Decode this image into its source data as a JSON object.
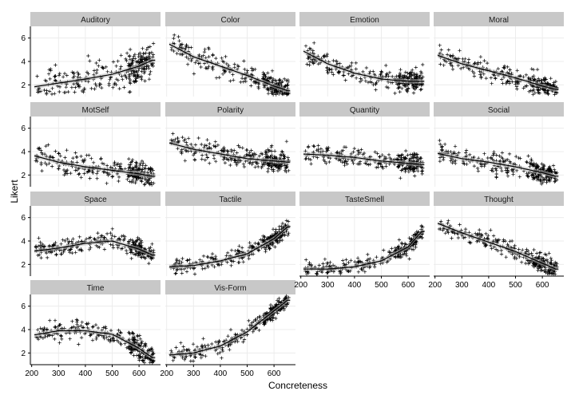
{
  "chart_data": {
    "type": "scatter",
    "title": "",
    "xlabel": "Concreteness",
    "ylabel": "Likert",
    "xlim": [
      195,
      680
    ],
    "ylim": [
      1,
      7
    ],
    "x_ticks": [
      200,
      300,
      400,
      500,
      600
    ],
    "y_ticks": [
      2,
      4,
      6
    ],
    "grid": true,
    "facet_layout": {
      "columns": 4,
      "rows": 4
    },
    "colors": {
      "points": "#000000",
      "smooth": "#000000",
      "ribbon": "#bdbdbd",
      "strip": "#c8c8c8",
      "grid": "#ececec"
    },
    "facets": [
      {
        "name": "Auditory",
        "smooth_x": [
          200,
          300,
          400,
          500,
          600,
          650
        ],
        "smooth_y": [
          1.8,
          2.15,
          2.5,
          2.9,
          3.6,
          4.1
        ],
        "spread": 1.3
      },
      {
        "name": "Color",
        "smooth_x": [
          200,
          300,
          400,
          500,
          600,
          650
        ],
        "smooth_y": [
          5.6,
          4.4,
          3.6,
          2.8,
          1.9,
          1.5
        ],
        "spread": 0.8
      },
      {
        "name": "Emotion",
        "smooth_x": [
          200,
          300,
          400,
          500,
          600,
          650
        ],
        "smooth_y": [
          5.0,
          3.8,
          3.0,
          2.5,
          2.3,
          2.3
        ],
        "spread": 0.8
      },
      {
        "name": "Moral",
        "smooth_x": [
          200,
          300,
          400,
          500,
          600,
          650
        ],
        "smooth_y": [
          4.6,
          3.8,
          3.2,
          2.6,
          1.9,
          1.6
        ],
        "spread": 0.8
      },
      {
        "name": "MotSelf",
        "smooth_x": [
          200,
          300,
          400,
          500,
          600,
          650
        ],
        "smooth_y": [
          3.7,
          3.1,
          2.7,
          2.4,
          2.1,
          1.9
        ],
        "spread": 0.9
      },
      {
        "name": "Polarity",
        "smooth_x": [
          200,
          300,
          400,
          500,
          600,
          650
        ],
        "smooth_y": [
          4.8,
          4.2,
          3.8,
          3.4,
          3.2,
          3.1
        ],
        "spread": 0.8
      },
      {
        "name": "Quantity",
        "smooth_x": [
          200,
          300,
          400,
          500,
          600,
          650
        ],
        "smooth_y": [
          3.8,
          3.7,
          3.5,
          3.2,
          3.0,
          2.9
        ],
        "spread": 0.8
      },
      {
        "name": "Social",
        "smooth_x": [
          200,
          300,
          400,
          500,
          600,
          650
        ],
        "smooth_y": [
          3.9,
          3.4,
          3.1,
          2.7,
          2.2,
          1.9
        ],
        "spread": 0.8
      },
      {
        "name": "Space",
        "smooth_x": [
          200,
          300,
          400,
          500,
          600,
          650
        ],
        "smooth_y": [
          3.1,
          3.4,
          3.8,
          4.0,
          3.3,
          2.8
        ],
        "spread": 0.7
      },
      {
        "name": "Tactile",
        "smooth_x": [
          200,
          300,
          400,
          500,
          600,
          650
        ],
        "smooth_y": [
          1.8,
          1.9,
          2.3,
          2.9,
          4.2,
          5.2
        ],
        "spread": 0.6
      },
      {
        "name": "TasteSmell",
        "smooth_x": [
          200,
          300,
          400,
          500,
          600,
          650
        ],
        "smooth_y": [
          1.6,
          1.6,
          1.8,
          2.3,
          3.5,
          4.8
        ],
        "spread": 0.6
      },
      {
        "name": "Thought",
        "smooth_x": [
          200,
          300,
          400,
          500,
          600,
          650
        ],
        "smooth_y": [
          5.6,
          4.7,
          3.9,
          3.1,
          2.1,
          1.6
        ],
        "spread": 0.7
      },
      {
        "name": "Time",
        "smooth_x": [
          200,
          300,
          400,
          500,
          600,
          650
        ],
        "smooth_y": [
          3.5,
          3.9,
          3.9,
          3.6,
          2.4,
          1.6
        ],
        "spread": 0.8
      },
      {
        "name": "Vis-Form",
        "smooth_x": [
          200,
          300,
          400,
          500,
          600,
          650
        ],
        "smooth_y": [
          1.8,
          2.0,
          2.6,
          3.8,
          5.6,
          6.5
        ],
        "spread": 0.6
      }
    ]
  }
}
